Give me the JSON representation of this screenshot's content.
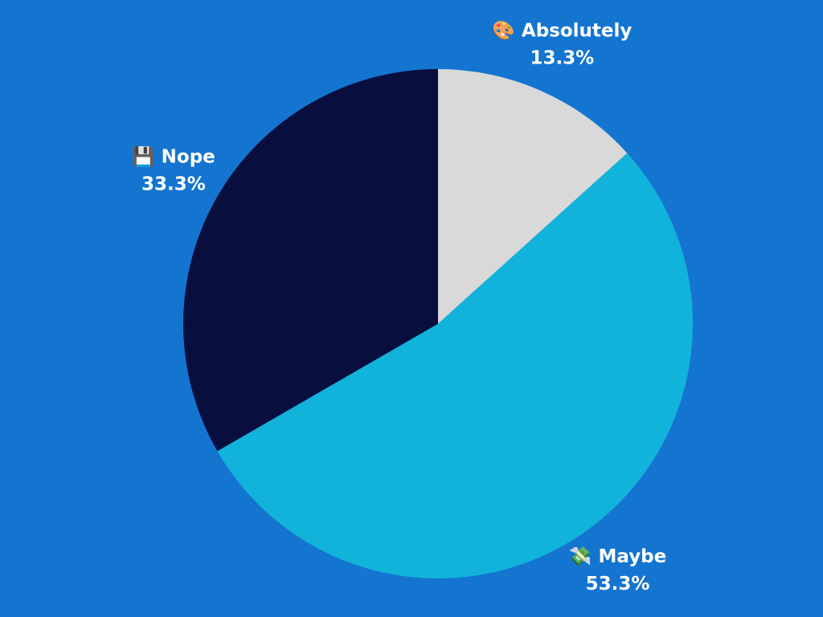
{
  "chart_data": {
    "type": "pie",
    "categories": [
      "🎨 Absolutely",
      "💸 Maybe",
      "💾 Nope"
    ],
    "values": [
      13.3,
      53.3,
      33.3
    ],
    "value_labels": [
      "13.3%",
      "53.3%",
      "33.3%"
    ],
    "colors": [
      "#d9d9d9",
      "#12b3db",
      "#080f3f"
    ]
  }
}
